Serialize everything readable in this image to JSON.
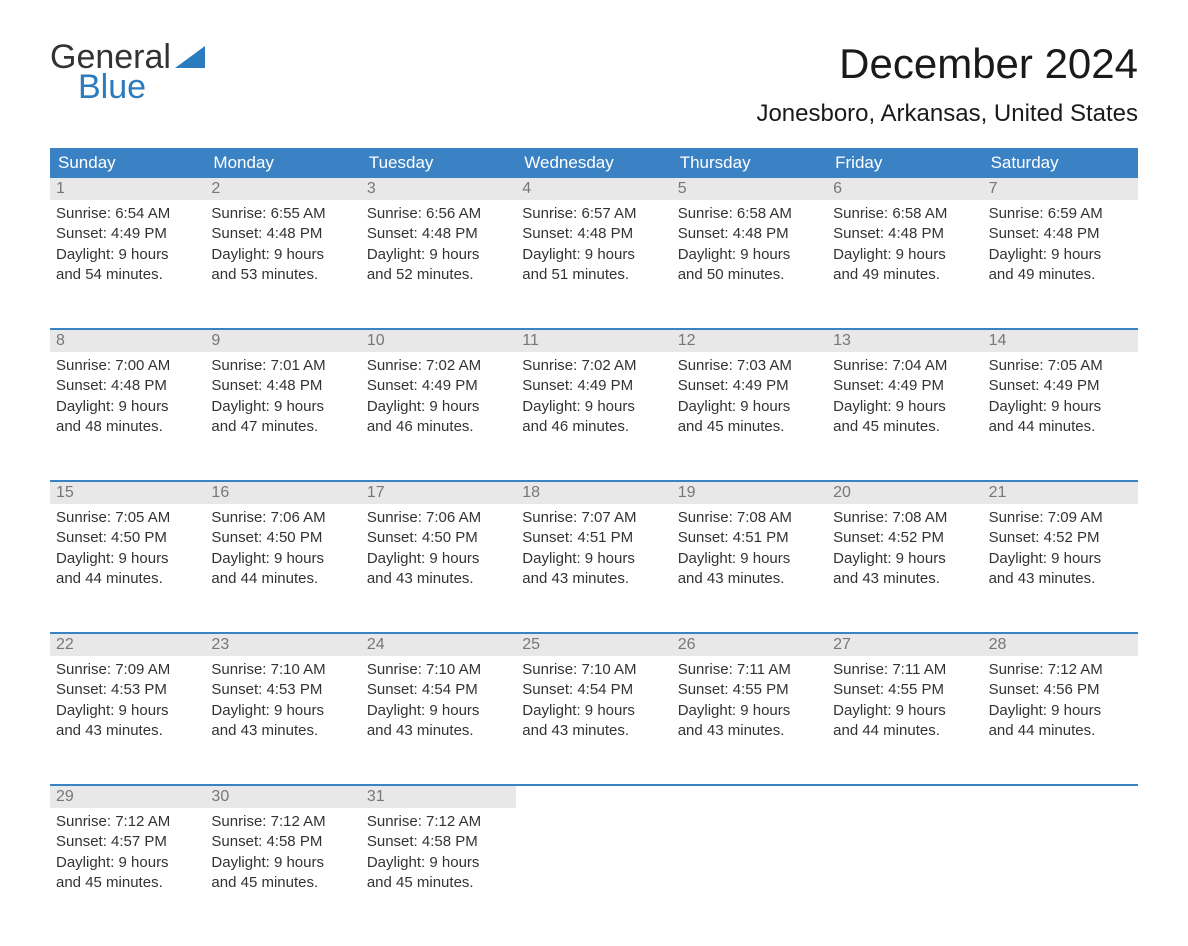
{
  "logo": {
    "line1": "General",
    "line2": "Blue",
    "color_general": "#333333",
    "color_blue": "#2b7bbf",
    "triangle_color": "#2b7bbf"
  },
  "title": "December 2024",
  "location": "Jonesboro, Arkansas, United States",
  "colors": {
    "header_bg": "#3b82c4",
    "header_text": "#ffffff",
    "day_number_bg": "#e8e8e8",
    "day_number_text": "#777777",
    "body_text": "#333333",
    "week_border": "#3b82c4",
    "background": "#ffffff"
  },
  "day_names": [
    "Sunday",
    "Monday",
    "Tuesday",
    "Wednesday",
    "Thursday",
    "Friday",
    "Saturday"
  ],
  "weeks": [
    [
      {
        "num": "1",
        "sunrise": "Sunrise: 6:54 AM",
        "sunset": "Sunset: 4:49 PM",
        "daylight1": "Daylight: 9 hours",
        "daylight2": "and 54 minutes."
      },
      {
        "num": "2",
        "sunrise": "Sunrise: 6:55 AM",
        "sunset": "Sunset: 4:48 PM",
        "daylight1": "Daylight: 9 hours",
        "daylight2": "and 53 minutes."
      },
      {
        "num": "3",
        "sunrise": "Sunrise: 6:56 AM",
        "sunset": "Sunset: 4:48 PM",
        "daylight1": "Daylight: 9 hours",
        "daylight2": "and 52 minutes."
      },
      {
        "num": "4",
        "sunrise": "Sunrise: 6:57 AM",
        "sunset": "Sunset: 4:48 PM",
        "daylight1": "Daylight: 9 hours",
        "daylight2": "and 51 minutes."
      },
      {
        "num": "5",
        "sunrise": "Sunrise: 6:58 AM",
        "sunset": "Sunset: 4:48 PM",
        "daylight1": "Daylight: 9 hours",
        "daylight2": "and 50 minutes."
      },
      {
        "num": "6",
        "sunrise": "Sunrise: 6:58 AM",
        "sunset": "Sunset: 4:48 PM",
        "daylight1": "Daylight: 9 hours",
        "daylight2": "and 49 minutes."
      },
      {
        "num": "7",
        "sunrise": "Sunrise: 6:59 AM",
        "sunset": "Sunset: 4:48 PM",
        "daylight1": "Daylight: 9 hours",
        "daylight2": "and 49 minutes."
      }
    ],
    [
      {
        "num": "8",
        "sunrise": "Sunrise: 7:00 AM",
        "sunset": "Sunset: 4:48 PM",
        "daylight1": "Daylight: 9 hours",
        "daylight2": "and 48 minutes."
      },
      {
        "num": "9",
        "sunrise": "Sunrise: 7:01 AM",
        "sunset": "Sunset: 4:48 PM",
        "daylight1": "Daylight: 9 hours",
        "daylight2": "and 47 minutes."
      },
      {
        "num": "10",
        "sunrise": "Sunrise: 7:02 AM",
        "sunset": "Sunset: 4:49 PM",
        "daylight1": "Daylight: 9 hours",
        "daylight2": "and 46 minutes."
      },
      {
        "num": "11",
        "sunrise": "Sunrise: 7:02 AM",
        "sunset": "Sunset: 4:49 PM",
        "daylight1": "Daylight: 9 hours",
        "daylight2": "and 46 minutes."
      },
      {
        "num": "12",
        "sunrise": "Sunrise: 7:03 AM",
        "sunset": "Sunset: 4:49 PM",
        "daylight1": "Daylight: 9 hours",
        "daylight2": "and 45 minutes."
      },
      {
        "num": "13",
        "sunrise": "Sunrise: 7:04 AM",
        "sunset": "Sunset: 4:49 PM",
        "daylight1": "Daylight: 9 hours",
        "daylight2": "and 45 minutes."
      },
      {
        "num": "14",
        "sunrise": "Sunrise: 7:05 AM",
        "sunset": "Sunset: 4:49 PM",
        "daylight1": "Daylight: 9 hours",
        "daylight2": "and 44 minutes."
      }
    ],
    [
      {
        "num": "15",
        "sunrise": "Sunrise: 7:05 AM",
        "sunset": "Sunset: 4:50 PM",
        "daylight1": "Daylight: 9 hours",
        "daylight2": "and 44 minutes."
      },
      {
        "num": "16",
        "sunrise": "Sunrise: 7:06 AM",
        "sunset": "Sunset: 4:50 PM",
        "daylight1": "Daylight: 9 hours",
        "daylight2": "and 44 minutes."
      },
      {
        "num": "17",
        "sunrise": "Sunrise: 7:06 AM",
        "sunset": "Sunset: 4:50 PM",
        "daylight1": "Daylight: 9 hours",
        "daylight2": "and 43 minutes."
      },
      {
        "num": "18",
        "sunrise": "Sunrise: 7:07 AM",
        "sunset": "Sunset: 4:51 PM",
        "daylight1": "Daylight: 9 hours",
        "daylight2": "and 43 minutes."
      },
      {
        "num": "19",
        "sunrise": "Sunrise: 7:08 AM",
        "sunset": "Sunset: 4:51 PM",
        "daylight1": "Daylight: 9 hours",
        "daylight2": "and 43 minutes."
      },
      {
        "num": "20",
        "sunrise": "Sunrise: 7:08 AM",
        "sunset": "Sunset: 4:52 PM",
        "daylight1": "Daylight: 9 hours",
        "daylight2": "and 43 minutes."
      },
      {
        "num": "21",
        "sunrise": "Sunrise: 7:09 AM",
        "sunset": "Sunset: 4:52 PM",
        "daylight1": "Daylight: 9 hours",
        "daylight2": "and 43 minutes."
      }
    ],
    [
      {
        "num": "22",
        "sunrise": "Sunrise: 7:09 AM",
        "sunset": "Sunset: 4:53 PM",
        "daylight1": "Daylight: 9 hours",
        "daylight2": "and 43 minutes."
      },
      {
        "num": "23",
        "sunrise": "Sunrise: 7:10 AM",
        "sunset": "Sunset: 4:53 PM",
        "daylight1": "Daylight: 9 hours",
        "daylight2": "and 43 minutes."
      },
      {
        "num": "24",
        "sunrise": "Sunrise: 7:10 AM",
        "sunset": "Sunset: 4:54 PM",
        "daylight1": "Daylight: 9 hours",
        "daylight2": "and 43 minutes."
      },
      {
        "num": "25",
        "sunrise": "Sunrise: 7:10 AM",
        "sunset": "Sunset: 4:54 PM",
        "daylight1": "Daylight: 9 hours",
        "daylight2": "and 43 minutes."
      },
      {
        "num": "26",
        "sunrise": "Sunrise: 7:11 AM",
        "sunset": "Sunset: 4:55 PM",
        "daylight1": "Daylight: 9 hours",
        "daylight2": "and 43 minutes."
      },
      {
        "num": "27",
        "sunrise": "Sunrise: 7:11 AM",
        "sunset": "Sunset: 4:55 PM",
        "daylight1": "Daylight: 9 hours",
        "daylight2": "and 44 minutes."
      },
      {
        "num": "28",
        "sunrise": "Sunrise: 7:12 AM",
        "sunset": "Sunset: 4:56 PM",
        "daylight1": "Daylight: 9 hours",
        "daylight2": "and 44 minutes."
      }
    ],
    [
      {
        "num": "29",
        "sunrise": "Sunrise: 7:12 AM",
        "sunset": "Sunset: 4:57 PM",
        "daylight1": "Daylight: 9 hours",
        "daylight2": "and 45 minutes."
      },
      {
        "num": "30",
        "sunrise": "Sunrise: 7:12 AM",
        "sunset": "Sunset: 4:58 PM",
        "daylight1": "Daylight: 9 hours",
        "daylight2": "and 45 minutes."
      },
      {
        "num": "31",
        "sunrise": "Sunrise: 7:12 AM",
        "sunset": "Sunset: 4:58 PM",
        "daylight1": "Daylight: 9 hours",
        "daylight2": "and 45 minutes."
      },
      {
        "empty": true
      },
      {
        "empty": true
      },
      {
        "empty": true
      },
      {
        "empty": true
      }
    ]
  ]
}
